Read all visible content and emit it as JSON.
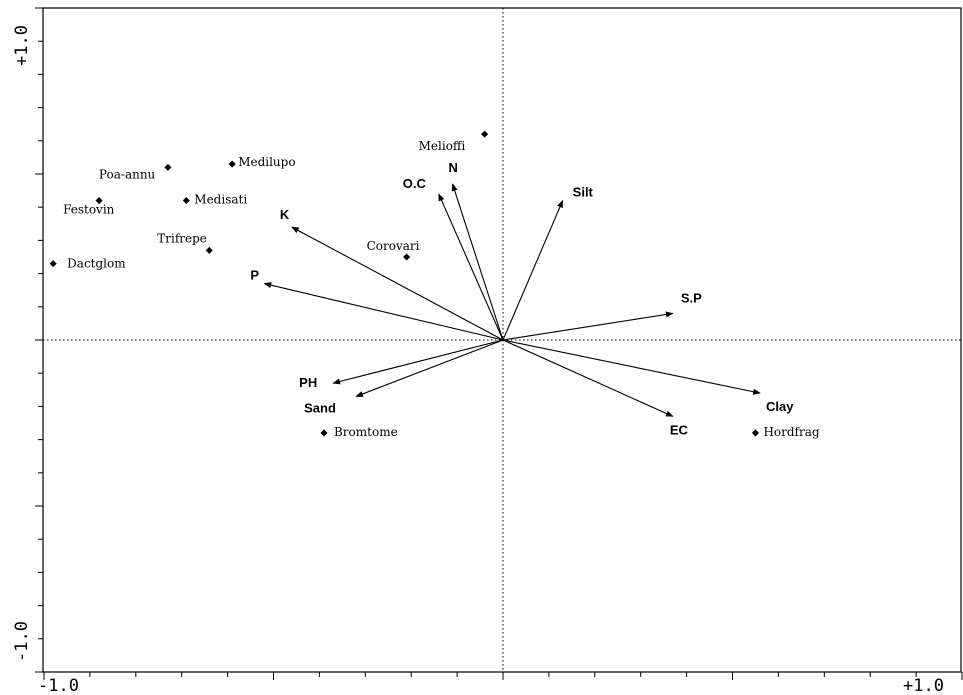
{
  "chart_data": {
    "type": "scatter",
    "subtype": "ordination-biplot",
    "title": "",
    "xlabel": "",
    "ylabel": "",
    "xlim": [
      -1.0,
      1.0
    ],
    "ylim": [
      -1.0,
      1.0
    ],
    "x_tick_labels": [
      "-1.0",
      "+1.0"
    ],
    "y_tick_labels": [
      "-1.0",
      "+1.0"
    ],
    "grid": false,
    "crosshair_at_origin": true,
    "environmental_vectors": [
      {
        "label": "N",
        "x": -0.11,
        "y": 0.47
      },
      {
        "label": "O.C",
        "x": -0.14,
        "y": 0.44
      },
      {
        "label": "Silt",
        "x": 0.13,
        "y": 0.42
      },
      {
        "label": "K",
        "x": -0.46,
        "y": 0.34
      },
      {
        "label": "P",
        "x": -0.52,
        "y": 0.17
      },
      {
        "label": "S.P",
        "x": 0.37,
        "y": 0.08
      },
      {
        "label": "PH",
        "x": -0.37,
        "y": -0.13
      },
      {
        "label": "Sand",
        "x": -0.32,
        "y": -0.17
      },
      {
        "label": "Clay",
        "x": 0.56,
        "y": -0.16
      },
      {
        "label": "EC",
        "x": 0.37,
        "y": -0.23
      }
    ],
    "species": [
      {
        "label": "Melioffi",
        "x": -0.04,
        "y": 0.62
      },
      {
        "label": "Medilupo",
        "x": -0.59,
        "y": 0.53
      },
      {
        "label": "Poa-annu",
        "x": -0.73,
        "y": 0.52
      },
      {
        "label": "Medisati",
        "x": -0.69,
        "y": 0.42
      },
      {
        "label": "Festovin",
        "x": -0.88,
        "y": 0.42
      },
      {
        "label": "Trifrepe",
        "x": -0.64,
        "y": 0.27
      },
      {
        "label": "Corovari",
        "x": -0.21,
        "y": 0.25
      },
      {
        "label": "Dactglom",
        "x": -0.98,
        "y": 0.23
      },
      {
        "label": "Bromtome",
        "x": -0.39,
        "y": -0.28
      },
      {
        "label": "Hordfrag",
        "x": 0.55,
        "y": -0.28
      }
    ]
  }
}
